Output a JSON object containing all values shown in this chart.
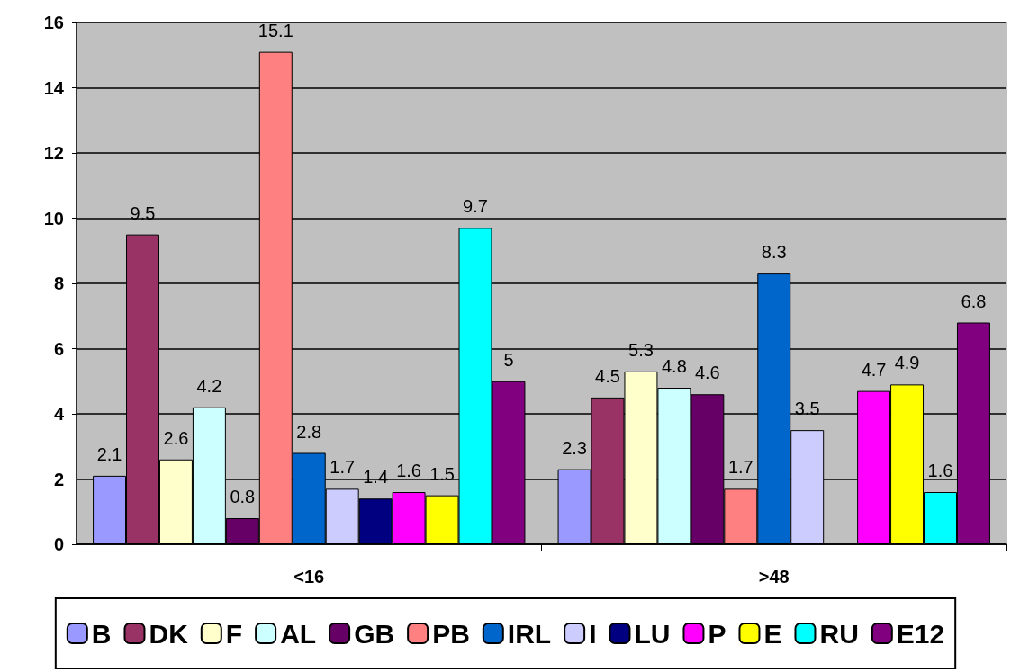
{
  "chart_data": {
    "type": "bar",
    "categories": [
      "<16",
      ">48"
    ],
    "series": [
      {
        "name": "B",
        "color": "#9999ff",
        "values": [
          2.1,
          2.3
        ]
      },
      {
        "name": "DK",
        "color": "#993366",
        "values": [
          9.5,
          4.5
        ]
      },
      {
        "name": "F",
        "color": "#ffffcc",
        "values": [
          2.6,
          5.3
        ]
      },
      {
        "name": "AL",
        "color": "#ccffff",
        "values": [
          4.2,
          4.8
        ]
      },
      {
        "name": "GB",
        "color": "#660066",
        "values": [
          0.8,
          4.6
        ]
      },
      {
        "name": "PB",
        "color": "#ff8080",
        "values": [
          15.1,
          1.7
        ]
      },
      {
        "name": "IRL",
        "color": "#0066cc",
        "values": [
          2.8,
          8.3
        ]
      },
      {
        "name": "I",
        "color": "#ccccff",
        "values": [
          1.7,
          3.5
        ]
      },
      {
        "name": "LU",
        "color": "#000080",
        "values": [
          1.4,
          null
        ]
      },
      {
        "name": "P",
        "color": "#ff00ff",
        "values": [
          1.6,
          4.7
        ]
      },
      {
        "name": "E",
        "color": "#ffff00",
        "values": [
          1.5,
          4.9
        ]
      },
      {
        "name": "RU",
        "color": "#00ffff",
        "values": [
          9.7,
          1.6
        ]
      },
      {
        "name": "E12",
        "color": "#800080",
        "values": [
          5,
          6.8
        ]
      }
    ],
    "ylim": [
      0,
      16
    ],
    "yticks": [
      0,
      2,
      4,
      6,
      8,
      10,
      12,
      14,
      16
    ],
    "grid": "y",
    "legend": "bottom",
    "data_labels": true
  }
}
